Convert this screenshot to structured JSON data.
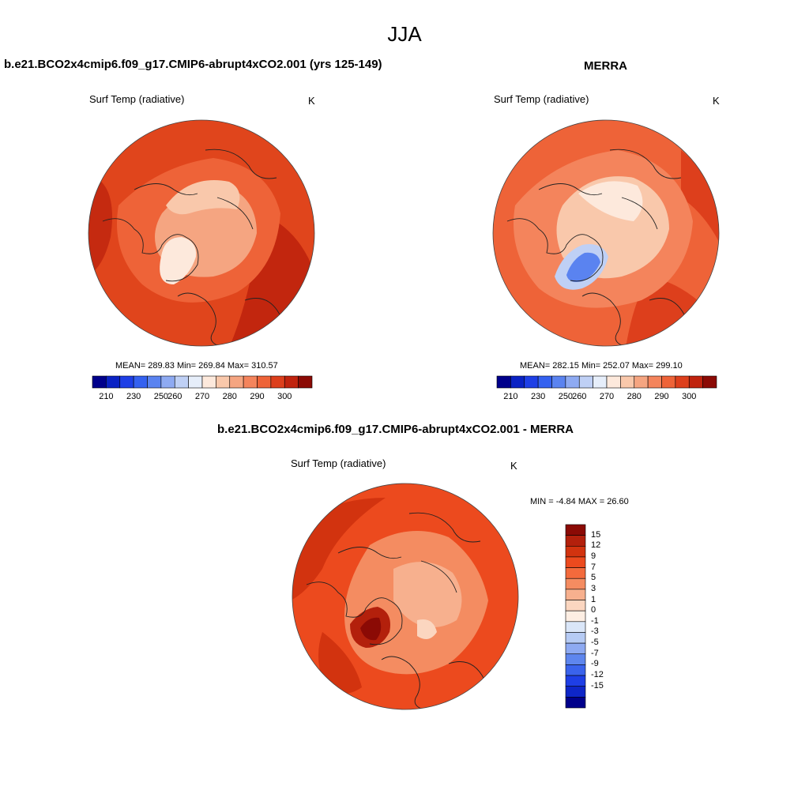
{
  "season": "JJA",
  "panels": {
    "model": {
      "title": "b.e21.BCO2x4cmip6.f09_g17.CMIP6-abrupt4xCO2.001 (yrs 125-149)",
      "var_label": "Surf Temp (radiative)",
      "units": "K",
      "stats": "MEAN= 289.83  Min= 269.84  Max= 310.57"
    },
    "obs": {
      "title": "MERRA",
      "var_label": "Surf Temp (radiative)",
      "units": "K",
      "stats": "MEAN= 282.15  Min= 252.07  Max= 299.10"
    },
    "diff": {
      "title": "b.e21.BCO2x4cmip6.f09_g17.CMIP6-abrupt4xCO2.001 - MERRA",
      "var_label": "Surf Temp (radiative)",
      "units": "K",
      "stats": "MIN =  -4.84 MAX =  26.60"
    }
  },
  "abs_colorbar": {
    "colors": [
      "#00008b",
      "#0a22c4",
      "#1e3fe6",
      "#3461f0",
      "#5a83f0",
      "#8eaaf2",
      "#bfd0f5",
      "#e6eefa",
      "#fde9dc",
      "#f9c8ab",
      "#f5a581",
      "#f4845c",
      "#ee6338",
      "#dd3f1c",
      "#c0230e",
      "#8b0a05"
    ],
    "tick_labels": [
      "210",
      "230",
      "250",
      "260",
      "270",
      "280",
      "290",
      "300"
    ]
  },
  "diff_colorbar": {
    "colors": [
      "#8b0a05",
      "#b3200c",
      "#d2330f",
      "#ec4a1e",
      "#f36a3c",
      "#f48c61",
      "#f7b08e",
      "#fbd6c0",
      "#fdeee3",
      "#dae6f8",
      "#b6cbf4",
      "#8eaaf2",
      "#5e86ee",
      "#3a63ec",
      "#1e3fe6",
      "#0e26c8",
      "#00008b"
    ],
    "labels": [
      "15",
      "12",
      "9",
      "7",
      "5",
      "3",
      "1",
      "0",
      "-1",
      "-3",
      "-5",
      "-7",
      "-9",
      "-12",
      "-15"
    ]
  }
}
